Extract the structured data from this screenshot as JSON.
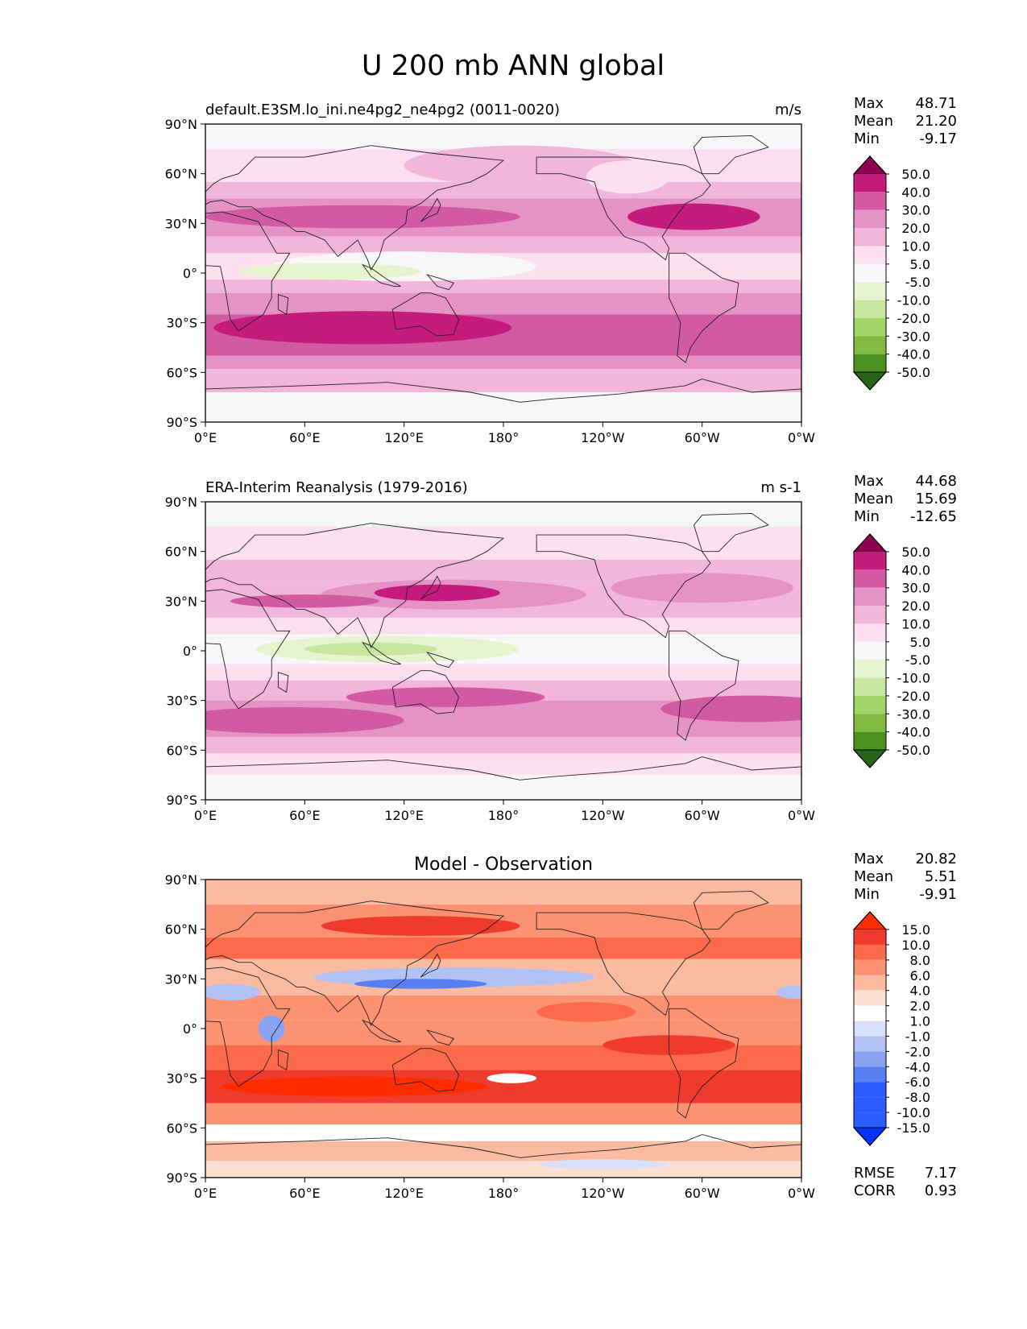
{
  "figure": {
    "title": "U 200 mb ANN global"
  },
  "axes": {
    "lat_ticks": [
      "90°N",
      "60°N",
      "30°N",
      "0°",
      "30°S",
      "60°S",
      "90°S"
    ],
    "lon_ticks": [
      "0°E",
      "60°E",
      "120°E",
      "180°",
      "120°W",
      "60°W",
      "0°W"
    ]
  },
  "stats_labels": {
    "max": "Max",
    "mean": "Mean",
    "min": "Min",
    "rmse": "RMSE",
    "corr": "CORR"
  },
  "colors": {
    "prgn": [
      "#276419",
      "#4d9221",
      "#7fbc41",
      "#a1d56a",
      "#c7e7a0",
      "#e6f5d0",
      "#f7f7f7",
      "#fde0ef",
      "#f1b6da",
      "#e592c5",
      "#d15aa3",
      "#c51b7d",
      "#8e0152"
    ],
    "diff": [
      "#0032ff",
      "#2b5cff",
      "#5a7ff0",
      "#8aa2f2",
      "#b3c2f5",
      "#d9e1fa",
      "#ffffff",
      "#fee0d2",
      "#fcbba1",
      "#fc9272",
      "#fb6a4a",
      "#ef3b2c",
      "#ff2d00"
    ]
  },
  "chart_data": [
    {
      "type": "heatmap",
      "title": "default.E3SM.lo_ini.ne4pg2_ne4pg2 (0011-0020)",
      "units": "m/s",
      "stats": {
        "max": "48.71",
        "mean": "21.20",
        "min": "-9.17"
      },
      "colorbar_levels": [
        "50.0",
        "40.0",
        "30.0",
        "20.0",
        "10.0",
        "5.0",
        "-5.0",
        "-10.0",
        "-20.0",
        "-30.0",
        "-40.0",
        "-50.0"
      ],
      "colormap": "prgn",
      "xlim": [
        0,
        360
      ],
      "ylim": [
        -90,
        90
      ],
      "bands": [
        {
          "lat": [
            75,
            90
          ],
          "level": 6
        },
        {
          "lat": [
            55,
            75
          ],
          "level": 7
        },
        {
          "lat": [
            45,
            55
          ],
          "level": 8
        },
        {
          "lat": [
            22,
            45
          ],
          "level": 9
        },
        {
          "lat": [
            12,
            22
          ],
          "level": 8
        },
        {
          "lat": [
            -4,
            12
          ],
          "level": 7
        },
        {
          "lat": [
            -12,
            -4
          ],
          "level": 8
        },
        {
          "lat": [
            -25,
            -12
          ],
          "level": 9
        },
        {
          "lat": [
            -50,
            -25
          ],
          "level": 10
        },
        {
          "lat": [
            -58,
            -50
          ],
          "level": 9
        },
        {
          "lat": [
            -72,
            -58
          ],
          "level": 8
        },
        {
          "lat": [
            -90,
            -72
          ],
          "level": 6
        }
      ],
      "blobs": [
        {
          "lon": 95,
          "lat": 34,
          "rlon": 95,
          "rlat": 7,
          "level": 10
        },
        {
          "lon": 295,
          "lat": 34,
          "rlon": 40,
          "rlat": 8,
          "level": 11
        },
        {
          "lon": 95,
          "lat": -33,
          "rlon": 90,
          "rlat": 10,
          "level": 11
        },
        {
          "lon": 120,
          "lat": 4,
          "rlon": 80,
          "rlat": 9,
          "level": 6
        },
        {
          "lon": 75,
          "lat": 1,
          "rlon": 55,
          "rlat": 5,
          "level": 5
        },
        {
          "lon": 190,
          "lat": 65,
          "rlon": 70,
          "rlat": 12,
          "level": 8
        },
        {
          "lon": 255,
          "lat": 58,
          "rlon": 25,
          "rlat": 10,
          "level": 7
        }
      ]
    },
    {
      "type": "heatmap",
      "title": "ERA-Interim Reanalysis (1979-2016)",
      "units": "m s-1",
      "stats": {
        "max": "44.68",
        "mean": "15.69",
        "min": "-12.65"
      },
      "colorbar_levels": [
        "50.0",
        "40.0",
        "30.0",
        "20.0",
        "10.0",
        "5.0",
        "-5.0",
        "-10.0",
        "-20.0",
        "-30.0",
        "-40.0",
        "-50.0"
      ],
      "colormap": "prgn",
      "xlim": [
        0,
        360
      ],
      "ylim": [
        -90,
        90
      ],
      "bands": [
        {
          "lat": [
            75,
            90
          ],
          "level": 6
        },
        {
          "lat": [
            55,
            75
          ],
          "level": 7
        },
        {
          "lat": [
            42,
            55
          ],
          "level": 8
        },
        {
          "lat": [
            20,
            42
          ],
          "level": 8
        },
        {
          "lat": [
            10,
            20
          ],
          "level": 7
        },
        {
          "lat": [
            -8,
            10
          ],
          "level": 6
        },
        {
          "lat": [
            -18,
            -8
          ],
          "level": 7
        },
        {
          "lat": [
            -30,
            -18
          ],
          "level": 8
        },
        {
          "lat": [
            -52,
            -30
          ],
          "level": 9
        },
        {
          "lat": [
            -62,
            -52
          ],
          "level": 8
        },
        {
          "lat": [
            -75,
            -62
          ],
          "level": 7
        },
        {
          "lat": [
            -90,
            -75
          ],
          "level": 6
        }
      ],
      "blobs": [
        {
          "lon": 150,
          "lat": 34,
          "rlon": 80,
          "rlat": 9,
          "level": 9
        },
        {
          "lon": 140,
          "lat": 35,
          "rlon": 38,
          "rlat": 5,
          "level": 11
        },
        {
          "lon": 60,
          "lat": 30,
          "rlon": 45,
          "rlat": 4,
          "level": 10
        },
        {
          "lon": 300,
          "lat": 38,
          "rlon": 55,
          "rlat": 9,
          "level": 9
        },
        {
          "lon": 110,
          "lat": 1,
          "rlon": 80,
          "rlat": 8,
          "level": 5
        },
        {
          "lon": 100,
          "lat": 1,
          "rlon": 40,
          "rlat": 4,
          "level": 4
        },
        {
          "lon": 50,
          "lat": -42,
          "rlon": 70,
          "rlat": 8,
          "level": 10
        },
        {
          "lon": 145,
          "lat": -28,
          "rlon": 60,
          "rlat": 6,
          "level": 10
        },
        {
          "lon": 330,
          "lat": -35,
          "rlon": 55,
          "rlat": 8,
          "level": 10
        }
      ]
    },
    {
      "type": "heatmap",
      "title": "Model - Observation",
      "stats": {
        "max": "20.82",
        "mean": "5.51",
        "min": "-9.91",
        "rmse": "7.17",
        "corr": "0.93"
      },
      "colorbar_levels": [
        "15.0",
        "10.0",
        "8.0",
        "6.0",
        "4.0",
        "2.0",
        "1.0",
        "-1.0",
        "-2.0",
        "-4.0",
        "-6.0",
        "-8.0",
        "-10.0",
        "-15.0"
      ],
      "colormap": "diff",
      "xlim": [
        0,
        360
      ],
      "ylim": [
        -90,
        90
      ],
      "bands": [
        {
          "lat": [
            75,
            90
          ],
          "level": 8
        },
        {
          "lat": [
            55,
            75
          ],
          "level": 9
        },
        {
          "lat": [
            42,
            55
          ],
          "level": 10
        },
        {
          "lat": [
            20,
            42
          ],
          "level": 8
        },
        {
          "lat": [
            5,
            20
          ],
          "level": 9
        },
        {
          "lat": [
            -10,
            5
          ],
          "level": 9
        },
        {
          "lat": [
            -25,
            -10
          ],
          "level": 10
        },
        {
          "lat": [
            -45,
            -25
          ],
          "level": 11
        },
        {
          "lat": [
            -58,
            -45
          ],
          "level": 9
        },
        {
          "lat": [
            -68,
            -58
          ],
          "level": 6
        },
        {
          "lat": [
            -80,
            -68
          ],
          "level": 8
        },
        {
          "lat": [
            -90,
            -80
          ],
          "level": 7
        }
      ],
      "blobs": [
        {
          "lon": 150,
          "lat": 31,
          "rlon": 85,
          "rlat": 6,
          "level": 4
        },
        {
          "lon": 130,
          "lat": 27,
          "rlon": 40,
          "rlat": 3,
          "level": 2
        },
        {
          "lon": 15,
          "lat": 22,
          "rlon": 18,
          "rlat": 5,
          "level": 4
        },
        {
          "lon": 355,
          "lat": 22,
          "rlon": 10,
          "rlat": 4,
          "level": 4
        },
        {
          "lon": 40,
          "lat": 0,
          "rlon": 8,
          "rlat": 8,
          "level": 3
        },
        {
          "lon": 90,
          "lat": -35,
          "rlon": 80,
          "rlat": 6,
          "level": 12
        },
        {
          "lon": 185,
          "lat": -30,
          "rlon": 15,
          "rlat": 3,
          "level": 6
        },
        {
          "lon": 280,
          "lat": -10,
          "rlon": 40,
          "rlat": 6,
          "level": 11
        },
        {
          "lon": 230,
          "lat": 10,
          "rlon": 30,
          "rlat": 6,
          "level": 10
        },
        {
          "lon": 240,
          "lat": -82,
          "rlon": 40,
          "rlat": 3,
          "level": 5
        },
        {
          "lon": 130,
          "lat": 62,
          "rlon": 60,
          "rlat": 6,
          "level": 11
        }
      ]
    }
  ]
}
